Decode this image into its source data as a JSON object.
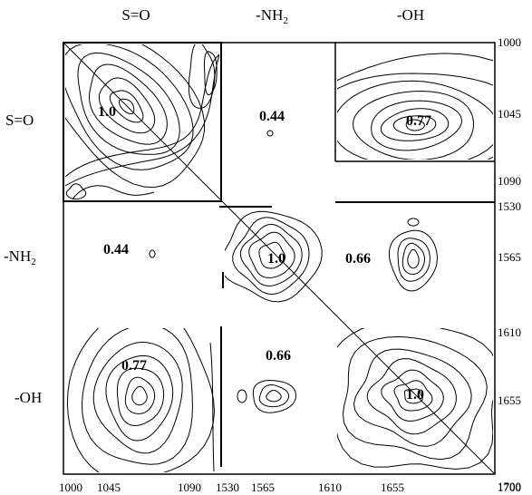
{
  "chart_data": {
    "type": "heatmap",
    "title": "",
    "column_groups": [
      {
        "label": "S=O",
        "label_sub": ""
      },
      {
        "label": "-NH",
        "label_sub": "2"
      },
      {
        "label": "-OH",
        "label_sub": ""
      }
    ],
    "row_groups": [
      {
        "label": "S=O",
        "label_sub": ""
      },
      {
        "label": "-NH",
        "label_sub": "2"
      },
      {
        "label": "-OH",
        "label_sub": ""
      }
    ],
    "x_ticks": [
      "1000",
      "1045",
      "1090",
      "1530",
      "1565",
      "1610",
      "1655",
      "1700"
    ],
    "y_ticks": [
      "1000",
      "1045",
      "1090",
      "1530",
      "1565",
      "1610",
      "1655",
      "1700"
    ],
    "correlation_matrix": [
      [
        1.0,
        0.44,
        0.77
      ],
      [
        0.44,
        1.0,
        0.66
      ],
      [
        0.77,
        0.66,
        1.0
      ]
    ],
    "cell_labels": [
      [
        "1.0",
        "0.44",
        "0.77"
      ],
      [
        "0.44",
        "1.0",
        "0.66"
      ],
      [
        "0.77",
        "0.66",
        "1.0"
      ]
    ],
    "diagonal_line": true
  }
}
